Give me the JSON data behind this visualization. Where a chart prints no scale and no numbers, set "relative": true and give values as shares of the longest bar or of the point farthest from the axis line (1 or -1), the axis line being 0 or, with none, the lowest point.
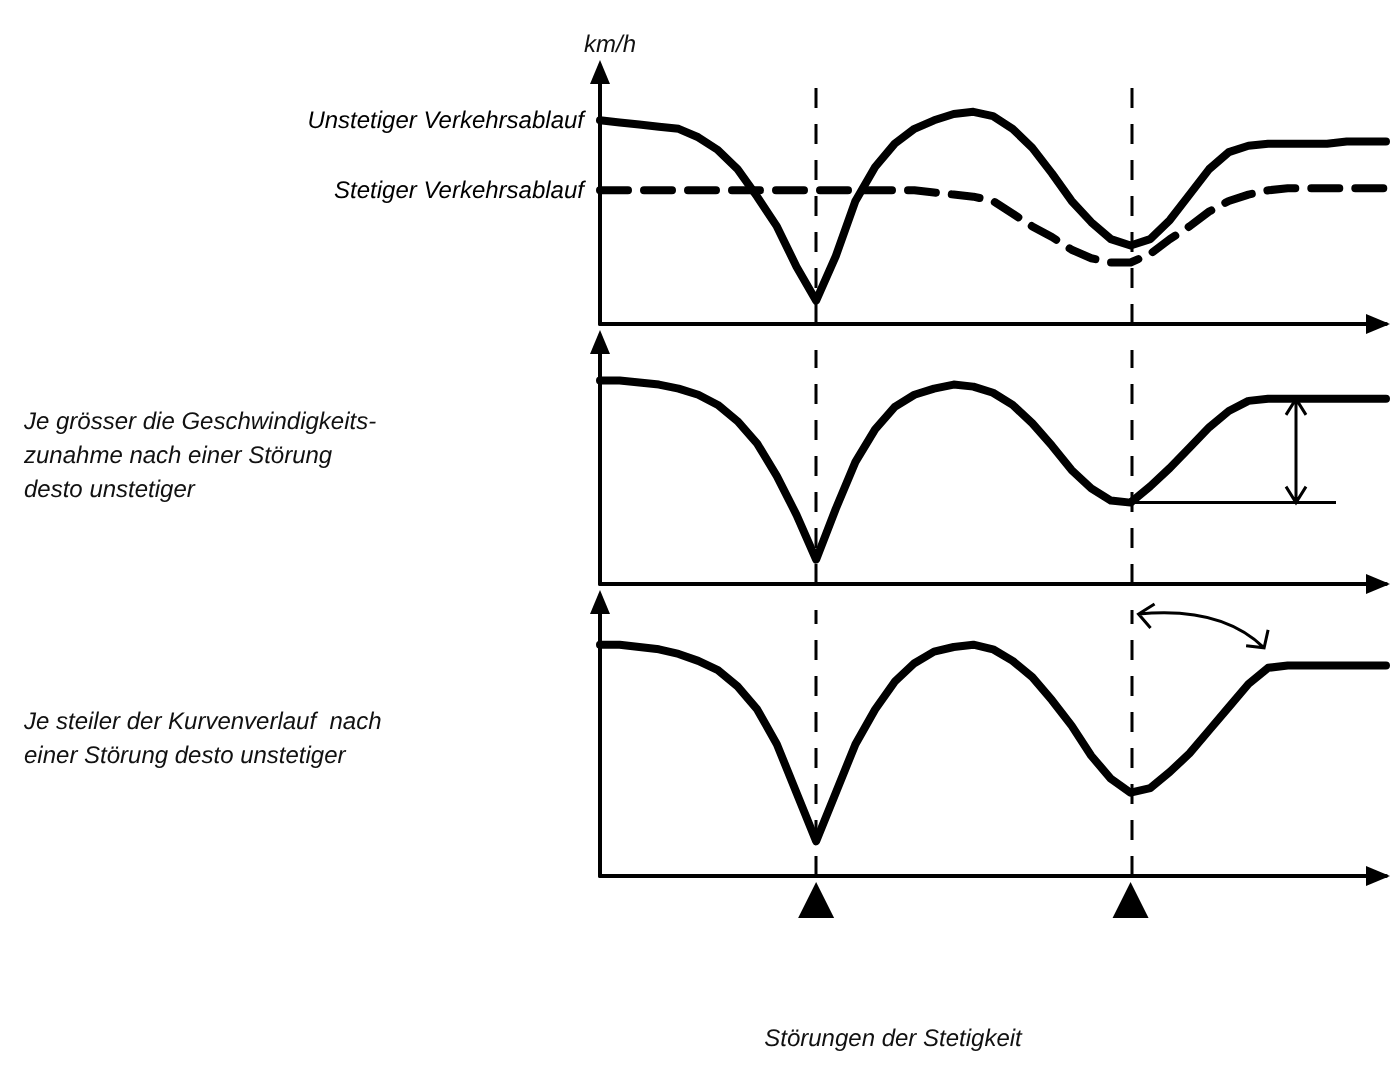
{
  "chart_data": [
    {
      "type": "line",
      "ylabel": "km/h",
      "relative": true,
      "categories": [
        null,
        null,
        null,
        null,
        null,
        null,
        null,
        null,
        null,
        null,
        null,
        null,
        null,
        null,
        null,
        null,
        null,
        null,
        null,
        null,
        null,
        null,
        null,
        null,
        null,
        null,
        null,
        null,
        null,
        null,
        null,
        null,
        null,
        null,
        null,
        null,
        null,
        null,
        null,
        null,
        null
      ],
      "marker": "none",
      "series": [
        {
          "name": "Unstetiger Verkehrsablauf",
          "color": "#000000",
          "line_style": "solid",
          "values": [
            0.96,
            0.95,
            0.94,
            0.93,
            0.92,
            0.88,
            0.82,
            0.73,
            0.6,
            0.46,
            0.27,
            0.11,
            0.32,
            0.58,
            0.74,
            0.85,
            0.92,
            0.96,
            0.99,
            1.0,
            0.98,
            0.92,
            0.83,
            0.71,
            0.58,
            0.48,
            0.4,
            0.37,
            0.4,
            0.49,
            0.61,
            0.73,
            0.81,
            0.84,
            0.85,
            0.85,
            0.85,
            0.85,
            0.86,
            0.86,
            0.86
          ]
        },
        {
          "name": "Stetiger Verkehrsablauf",
          "color": "#000000",
          "line_style": "dashed",
          "values": [
            0.63,
            0.63,
            0.63,
            0.63,
            0.63,
            0.63,
            0.63,
            0.63,
            0.63,
            0.63,
            0.63,
            0.63,
            0.63,
            0.63,
            0.63,
            0.63,
            0.63,
            0.62,
            0.61,
            0.6,
            0.58,
            0.52,
            0.46,
            0.41,
            0.35,
            0.31,
            0.29,
            0.29,
            0.33,
            0.4,
            0.46,
            0.53,
            0.58,
            0.61,
            0.63,
            0.64,
            0.64,
            0.64,
            0.64,
            0.64,
            0.64
          ]
        }
      ]
    },
    {
      "type": "line",
      "relative": true,
      "categories": [
        null,
        null,
        null,
        null,
        null,
        null,
        null,
        null,
        null,
        null,
        null,
        null,
        null,
        null,
        null,
        null,
        null,
        null,
        null,
        null,
        null,
        null,
        null,
        null,
        null,
        null,
        null,
        null,
        null,
        null,
        null,
        null,
        null,
        null,
        null,
        null,
        null,
        null,
        null,
        null,
        null
      ],
      "marker": "none",
      "annotations": [
        "Je grösser die Geschwindigkeits-\nzunahme nach einer Störung\ndesto unstetiger"
      ],
      "series": [
        {
          "color": "#000000",
          "line_style": "solid",
          "values": [
            1.0,
            1.0,
            0.99,
            0.98,
            0.96,
            0.93,
            0.88,
            0.8,
            0.69,
            0.53,
            0.34,
            0.12,
            0.37,
            0.6,
            0.76,
            0.87,
            0.93,
            0.96,
            0.98,
            0.97,
            0.94,
            0.88,
            0.79,
            0.68,
            0.56,
            0.47,
            0.41,
            0.4,
            0.48,
            0.57,
            0.67,
            0.77,
            0.85,
            0.9,
            0.91,
            0.91,
            0.91,
            0.91,
            0.91,
            0.91,
            0.91
          ]
        }
      ]
    },
    {
      "type": "line",
      "relative": true,
      "xlabel": "Störungen der Stetigkeit",
      "categories": [
        null,
        null,
        null,
        null,
        null,
        null,
        null,
        null,
        null,
        null,
        null,
        null,
        null,
        null,
        null,
        null,
        null,
        null,
        null,
        null,
        null,
        null,
        null,
        null,
        null,
        null,
        null,
        null,
        null,
        null,
        null,
        null,
        null,
        null,
        null,
        null,
        null,
        null,
        null,
        null,
        null
      ],
      "marker": "none",
      "annotations": [
        "Je steiler der Kurvenverlauf  nach\neiner Störung desto unstetiger"
      ],
      "series": [
        {
          "color": "#000000",
          "line_style": "solid",
          "values": [
            1.0,
            1.0,
            0.99,
            0.98,
            0.96,
            0.93,
            0.89,
            0.82,
            0.72,
            0.57,
            0.36,
            0.15,
            0.36,
            0.57,
            0.72,
            0.84,
            0.92,
            0.97,
            0.99,
            1.0,
            0.98,
            0.93,
            0.86,
            0.76,
            0.65,
            0.52,
            0.42,
            0.36,
            0.38,
            0.45,
            0.53,
            0.63,
            0.73,
            0.83,
            0.9,
            0.91,
            0.91,
            0.91,
            0.91,
            0.91,
            0.91
          ]
        }
      ]
    }
  ]
}
